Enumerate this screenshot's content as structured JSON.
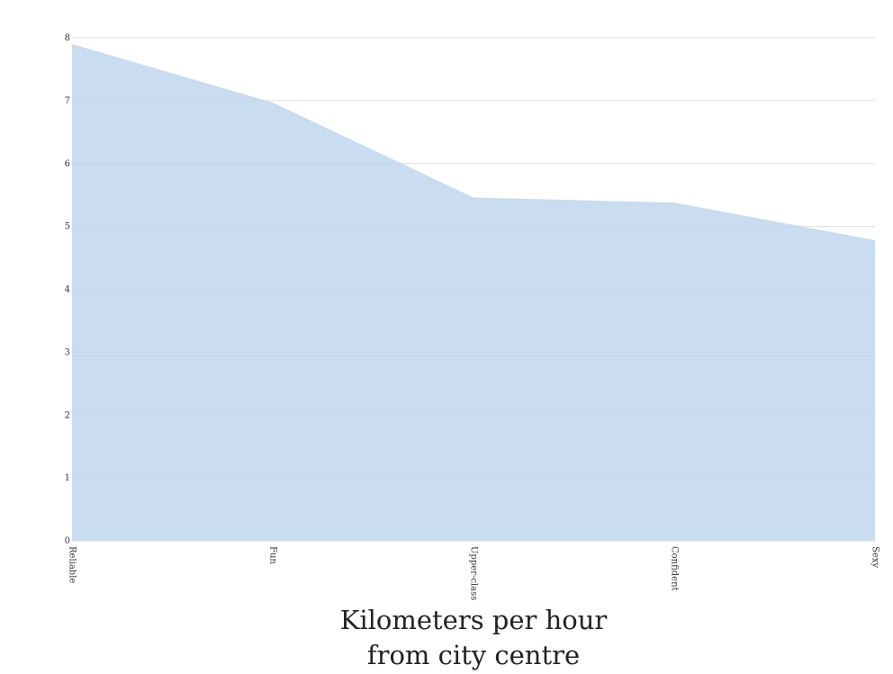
{
  "chart_data": {
    "type": "area",
    "title": "",
    "xlabel": "Kilometers per hour\nfrom city centre",
    "ylabel": "",
    "categories": [
      "Reliable",
      "Fun",
      "Upper-class",
      "Confident",
      "Sexy"
    ],
    "values": [
      7.9,
      6.97,
      5.46,
      5.38,
      4.78
    ],
    "ylim": [
      0,
      8
    ],
    "yticks": [
      "0",
      "1",
      "2",
      "3",
      "4",
      "5",
      "6",
      "7",
      "8"
    ],
    "grid": true,
    "legend": "none",
    "colors": {
      "area": "#c0d6ed",
      "grid": "#dddddd",
      "text": "#333333"
    }
  }
}
